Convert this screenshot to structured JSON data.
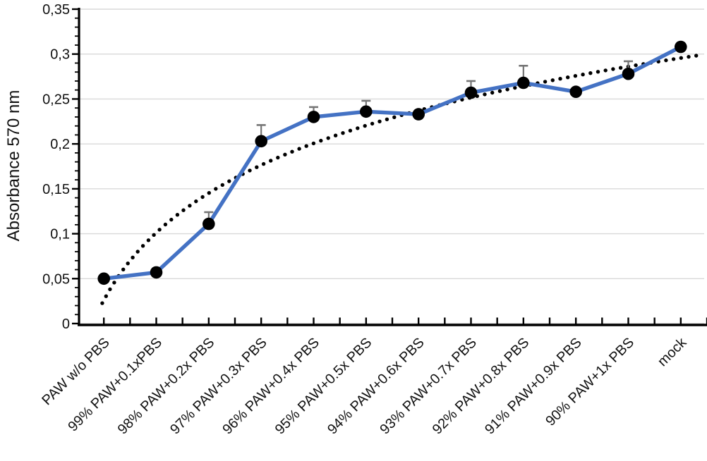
{
  "figure": {
    "background": "#ffffff"
  },
  "chart_data": {
    "type": "line",
    "title": "",
    "xlabel": "",
    "ylabel": "Absorbance 570 nm",
    "ylim": [
      0,
      0.35
    ],
    "y_tick_step": 0.05,
    "y_minor_tick_step": 0.01,
    "y_tick_labels": [
      "0",
      "0,05",
      "0,1",
      "0,15",
      "0,2",
      "0,25",
      "0,3",
      "0,35"
    ],
    "decimal_separator": ",",
    "grid": "horizontal",
    "legend": "none",
    "categories": [
      "PAW w/o PBS",
      "99% PAW+0.1xPBS",
      "98% PAW+0.2x PBS",
      "97% PAW+0.3x PBS",
      "96% PAW+0.4x PBS",
      "95% PAW+0.5x PBS",
      "94% PAW+0.6x PBS",
      "93% PAW+0.7x PBS",
      "92% PAW+0.8x PBS",
      "91% PAW+0.9x PBS",
      "90% PAW+1x PBS",
      "mock"
    ],
    "series": [
      {
        "name": "Absorbance 570 nm",
        "values": [
          0.05,
          0.057,
          0.111,
          0.203,
          0.23,
          0.236,
          0.233,
          0.257,
          0.268,
          0.258,
          0.278,
          0.308
        ],
        "error_plus": [
          0,
          0,
          0.013,
          0.018,
          0.011,
          0.012,
          0,
          0.013,
          0.019,
          0,
          0.014,
          0
        ],
        "line_color": "#4472C4",
        "line_width": 5.4,
        "marker": "circle",
        "marker_color": "#000000",
        "marker_radius": 8.8
      }
    ],
    "trendline": {
      "type": "logarithmic",
      "style": "dotted",
      "color": "#000000",
      "a": 0.1085,
      "b": 0.026,
      "equation": "y = 0.1085*ln(x) + 0.026",
      "x_start": 0.97,
      "x_end": 12.35,
      "dot_radius": 2.7,
      "dot_spacing": 10.8
    },
    "style": {
      "axis_color": "#000000",
      "grid_color": "#d9d9d9",
      "error_bar_color": "#757575",
      "label_color": "#111111"
    }
  }
}
